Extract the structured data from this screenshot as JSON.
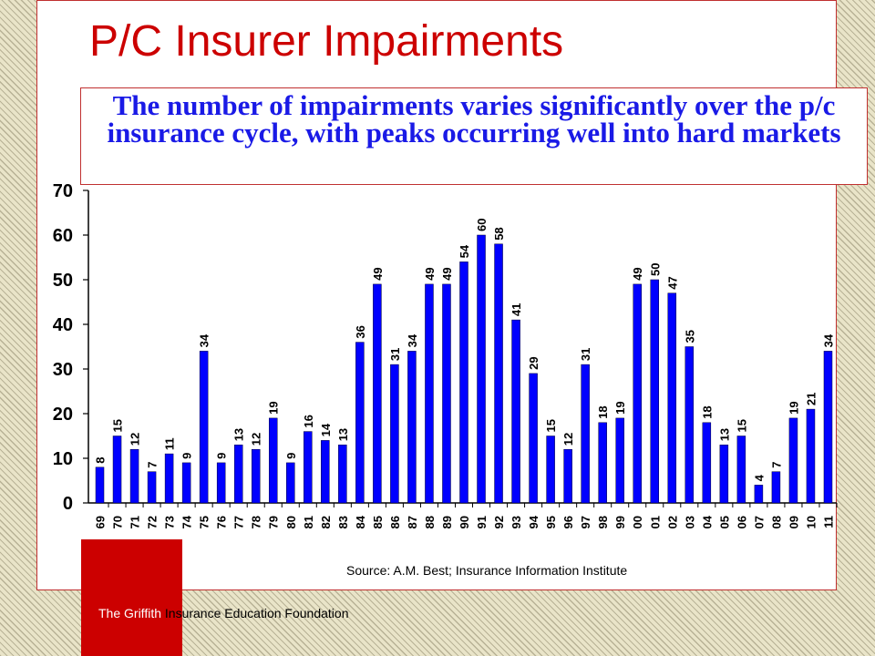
{
  "slide": {
    "title": "P/C Insurer Impairments",
    "subtitle": "The number of impairments varies significantly over the p/c insurance cycle, with peaks occurring well into hard markets",
    "source": "Source: A.M. Best; Insurance Information Institute",
    "footer_part1": "The Griffith",
    "footer_part2": " Insurance Education Foundation"
  },
  "colors": {
    "title": "#cc0000",
    "subtitle": "#1a1ae6",
    "bar": "#0000ff",
    "frame": "#c03030"
  },
  "chart_data": {
    "type": "bar",
    "categories": [
      "69",
      "70",
      "71",
      "72",
      "73",
      "74",
      "75",
      "76",
      "77",
      "78",
      "79",
      "80",
      "81",
      "82",
      "83",
      "84",
      "85",
      "86",
      "87",
      "88",
      "89",
      "90",
      "91",
      "92",
      "93",
      "94",
      "95",
      "96",
      "97",
      "98",
      "99",
      "00",
      "01",
      "02",
      "03",
      "04",
      "05",
      "06",
      "07",
      "08",
      "09",
      "10",
      "11"
    ],
    "values": [
      8,
      15,
      12,
      7,
      11,
      9,
      34,
      9,
      13,
      12,
      19,
      9,
      16,
      14,
      13,
      36,
      49,
      31,
      34,
      49,
      49,
      54,
      60,
      58,
      41,
      29,
      15,
      12,
      31,
      18,
      19,
      49,
      50,
      47,
      35,
      18,
      13,
      15,
      4,
      7,
      19,
      21,
      34
    ],
    "yticks": [
      0,
      10,
      20,
      30,
      40,
      50,
      60,
      70
    ],
    "ylim": [
      0,
      70
    ],
    "data_labels": "rotated above each bar",
    "grid": false,
    "legend": "none"
  }
}
